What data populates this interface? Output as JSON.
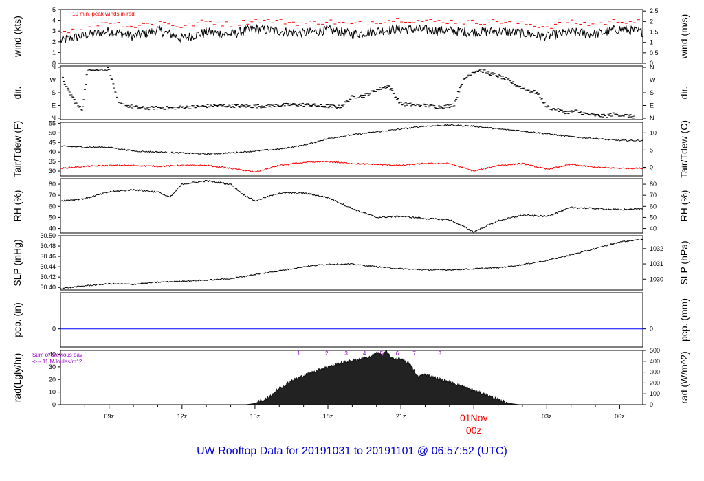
{
  "footer_title": "UW Rooftop Data for 20191031  to  20191101 @ 06:57:52  (UTC)",
  "colors": {
    "axis": "#000000",
    "secondary": "#ff0000",
    "precip": "#0000ff",
    "annot": "#9900cc",
    "title": "#0000cc"
  },
  "x_axis": {
    "ticks": [
      {
        "label": "09z",
        "hour": 9,
        "primary": true
      },
      {
        "label": "12z",
        "hour": 12,
        "primary": true
      },
      {
        "label": "15z",
        "hour": 15,
        "primary": true
      },
      {
        "label": "18z",
        "hour": 18,
        "primary": true
      },
      {
        "label": "21z",
        "hour": 21,
        "primary": true
      },
      {
        "label": "01Nov",
        "label2": "00z",
        "hour": 24,
        "primary": true,
        "highlight": true
      },
      {
        "label": "03z",
        "hour": 27,
        "primary": true
      },
      {
        "label": "06z",
        "hour": 30,
        "primary": true
      }
    ],
    "minor_hours": [
      8,
      10,
      11,
      13,
      14,
      16,
      17,
      19,
      20,
      22,
      23,
      25,
      26,
      28,
      29
    ],
    "range_hours": [
      7.0,
      30.95
    ]
  },
  "chart_data": [
    {
      "id": "wind",
      "type": "line",
      "ylabel": "wind (kts)",
      "ylabel_right": "wind (m/s)",
      "yticks": [
        "0",
        "1",
        "2",
        "3",
        "4",
        "5"
      ],
      "yticks_right": [
        "0",
        "0.5",
        "1",
        "1.5",
        "2",
        "2.5"
      ],
      "ylim": [
        0,
        5
      ],
      "annotation": "10 min. peak winds in red",
      "series": [
        {
          "color": "#000000",
          "x": [
            7,
            8,
            9,
            10,
            11,
            12,
            13,
            14,
            15,
            16,
            17,
            18,
            19,
            20,
            21,
            22,
            23,
            24,
            25,
            26,
            27,
            28,
            29,
            30,
            30.95
          ],
          "values": [
            2.1,
            2.6,
            3.0,
            2.5,
            3.1,
            2.3,
            2.9,
            2.7,
            3.2,
            3.0,
            2.8,
            3.1,
            2.7,
            3.0,
            3.2,
            3.1,
            3.0,
            2.9,
            3.0,
            2.8,
            2.5,
            2.9,
            2.7,
            3.2,
            2.9
          ]
        },
        {
          "color": "#ff0000",
          "style": "dashes",
          "x": [
            7,
            8,
            9,
            10,
            11,
            12,
            13,
            14,
            15,
            16,
            17,
            18,
            19,
            20,
            21,
            22,
            23,
            24,
            25,
            26,
            27,
            28,
            29,
            30,
            30.95
          ],
          "values": [
            2.9,
            3.4,
            3.9,
            3.4,
            3.9,
            3.4,
            3.9,
            3.6,
            4.0,
            3.9,
            3.7,
            3.9,
            3.6,
            3.9,
            4.1,
            3.9,
            3.9,
            3.8,
            3.9,
            3.7,
            3.4,
            3.8,
            3.6,
            4.0,
            3.8
          ]
        }
      ]
    },
    {
      "id": "dir",
      "type": "scatter",
      "ylabel": "dir.",
      "ylabel_right": "dir.",
      "yticks": [
        "N",
        "E",
        "S",
        "W",
        "N"
      ],
      "yticks_right": [
        "N",
        "E",
        "S",
        "W",
        "N"
      ],
      "ylim": [
        0,
        360
      ],
      "series": [
        {
          "color": "#000000",
          "x": [
            7.1,
            7.3,
            7.5,
            7.7,
            7.9,
            8.1,
            8.3,
            8.6,
            9.0,
            9.4,
            10,
            10.5,
            11,
            11.5,
            12,
            12.5,
            13,
            13.5,
            14,
            14.5,
            15,
            15.5,
            16,
            16.5,
            17,
            17.5,
            18,
            18.5,
            19,
            19.5,
            20,
            20.5,
            21,
            21.5,
            22,
            22.5,
            23,
            23.2,
            23.5,
            23.8,
            24,
            24.3,
            24.6,
            25,
            25.4,
            25.8,
            26.2,
            26.6,
            27,
            27.4,
            27.8,
            28.2,
            28.6,
            29,
            29.4,
            29.8,
            30.2,
            30.6
          ],
          "values": [
            280,
            200,
            150,
            90,
            60,
            330,
            350,
            340,
            350,
            100,
            80,
            70,
            75,
            72,
            78,
            80,
            85,
            90,
            88,
            86,
            84,
            88,
            92,
            95,
            96,
            90,
            85,
            80,
            150,
            160,
            200,
            230,
            100,
            95,
            90,
            80,
            86,
            100,
            250,
            310,
            330,
            340,
            320,
            300,
            270,
            230,
            200,
            180,
            80,
            60,
            40,
            50,
            30,
            20,
            15,
            30,
            20,
            10
          ]
        }
      ]
    },
    {
      "id": "temp",
      "type": "line",
      "ylabel": "Tair/Tdew (F)",
      "ylabel_right": "Tair/Tdew (C)",
      "yticks": [
        "30",
        "35",
        "40",
        "45",
        "50",
        "55"
      ],
      "yticks_right": [
        "0",
        "5",
        "10"
      ],
      "ylim": [
        27.5,
        55.5
      ],
      "series": [
        {
          "name": "Tair",
          "color": "#000000",
          "x": [
            7,
            8,
            9,
            10,
            11,
            12,
            13,
            14,
            15,
            16,
            17,
            18,
            19,
            20,
            21,
            22,
            23,
            24,
            25,
            26,
            27,
            28,
            29,
            30,
            30.95
          ],
          "values": [
            43,
            42.5,
            42.5,
            40.5,
            40,
            39.5,
            39,
            39.5,
            40.5,
            41.5,
            43.5,
            47,
            49,
            50.5,
            52,
            53.5,
            54,
            53.5,
            52,
            51,
            49.5,
            48,
            47,
            46,
            46
          ]
        },
        {
          "name": "Tdew",
          "color": "#ff0000",
          "x": [
            7,
            8,
            9,
            10,
            11,
            12,
            13,
            14,
            15,
            16,
            17,
            18,
            19,
            20,
            21,
            22,
            23,
            24,
            25,
            26,
            27,
            28,
            29,
            30,
            30.95
          ],
          "values": [
            31.5,
            32.5,
            33,
            33,
            32.5,
            33,
            33,
            31.5,
            29.5,
            33,
            34.5,
            35,
            34,
            33.5,
            33,
            34,
            34,
            30,
            33,
            34,
            31,
            33.5,
            32,
            31.5,
            31.5
          ]
        }
      ]
    },
    {
      "id": "rh",
      "type": "line",
      "ylabel": "RH (%)",
      "ylabel_right": "RH (%)",
      "yticks": [
        "40",
        "50",
        "60",
        "70",
        "80"
      ],
      "yticks_right": [
        "40",
        "50",
        "60",
        "70",
        "80"
      ],
      "ylim": [
        36,
        85
      ],
      "series": [
        {
          "color": "#000000",
          "x": [
            7,
            8,
            9,
            10,
            11,
            11.5,
            12,
            13,
            14,
            14.5,
            15,
            16,
            17,
            18,
            19,
            20,
            21,
            22,
            23,
            24,
            25,
            26,
            27,
            28,
            29,
            30,
            30.95
          ],
          "values": [
            65,
            67,
            73,
            75,
            73,
            68,
            80,
            83,
            80,
            71,
            65,
            72,
            72,
            68,
            58,
            50,
            51,
            49,
            48,
            37,
            47,
            52,
            51,
            59,
            58,
            57,
            58
          ]
        }
      ]
    },
    {
      "id": "slp",
      "type": "line",
      "ylabel": "SLP (inHg)",
      "ylabel_right": "SLP (hPa)",
      "yticks": [
        "30.40",
        "30.42",
        "30.44",
        "30.46",
        "30.48",
        "30.50"
      ],
      "yticks_right": [
        "1030",
        "1031",
        "1032"
      ],
      "ylim": [
        30.395,
        30.5
      ],
      "series": [
        {
          "color": "#000000",
          "x": [
            7,
            8,
            9,
            10,
            11,
            12,
            13,
            14,
            15,
            16,
            17,
            18,
            19,
            20,
            21,
            22,
            23,
            24,
            25,
            26,
            27,
            28,
            29,
            30,
            30.95
          ],
          "values": [
            30.398,
            30.403,
            30.407,
            30.406,
            30.41,
            30.412,
            30.414,
            30.417,
            30.425,
            30.432,
            30.44,
            30.445,
            30.445,
            30.44,
            30.436,
            30.434,
            30.434,
            30.436,
            30.438,
            30.444,
            30.452,
            30.463,
            30.475,
            30.488,
            30.493
          ]
        }
      ]
    },
    {
      "id": "pcp",
      "type": "line",
      "ylabel": "pcp. (in)",
      "ylabel_right": "pcp. (mm)",
      "yticks": [
        "0"
      ],
      "yticks_right": [
        "0"
      ],
      "ylim": [
        -0.05,
        0.1
      ],
      "series": [
        {
          "color": "#0000ff",
          "x": [
            7,
            30.95
          ],
          "values": [
            0,
            0
          ]
        }
      ]
    },
    {
      "id": "rad",
      "type": "area",
      "ylabel": "rad(Lgly/hr)",
      "ylabel_right": "rad (W/m^2)",
      "yticks": [
        "0",
        "10",
        "20",
        "30",
        "40"
      ],
      "yticks_right": [
        "0",
        "100",
        "200",
        "300",
        "400",
        "500"
      ],
      "ylim": [
        0,
        43
      ],
      "annotation_lines": [
        "Sum of previous day",
        "<--- 11 MJoules/m^2"
      ],
      "hour_markers": [
        {
          "label": "1",
          "hour": 16.8
        },
        {
          "label": "2",
          "hour": 17.95
        },
        {
          "label": "3",
          "hour": 18.75
        },
        {
          "label": "4",
          "hour": 19.5
        },
        {
          "label": "5",
          "hour": 20.2
        },
        {
          "label": "6",
          "hour": 20.85
        },
        {
          "label": "7",
          "hour": 21.55
        },
        {
          "label": "8",
          "hour": 22.6
        }
      ],
      "series": [
        {
          "color": "#000000",
          "x": [
            14.6,
            15.0,
            15.5,
            16.0,
            16.5,
            17.0,
            17.5,
            18.0,
            18.5,
            19.0,
            19.5,
            19.8,
            20.0,
            20.2,
            20.4,
            20.6,
            21.0,
            21.4,
            21.7,
            22.0,
            22.5,
            23.0,
            23.5,
            24.0,
            24.5,
            25.0,
            25.5,
            25.9
          ],
          "values": [
            0,
            1,
            5,
            13,
            19,
            23,
            27,
            30,
            33,
            35,
            37,
            38,
            42,
            39,
            43,
            37,
            36,
            32,
            22,
            24,
            21,
            18,
            15,
            11,
            8,
            4,
            1,
            0
          ]
        }
      ]
    }
  ]
}
